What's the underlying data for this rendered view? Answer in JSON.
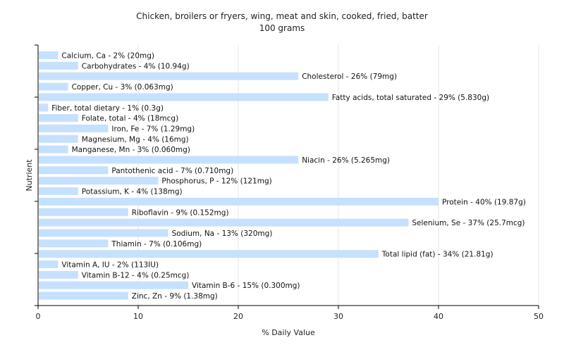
{
  "chart_data": {
    "type": "bar",
    "orientation": "horizontal",
    "title": "Chicken, broilers or fryers, wing, meat and skin, cooked, fried, batter",
    "subtitle": "100 grams",
    "xlabel": "% Daily Value",
    "ylabel": "Nutrient",
    "xlim": [
      0,
      50
    ],
    "xticks": [
      0,
      10,
      20,
      30,
      40,
      50
    ],
    "grid": true,
    "bar_color": "#c6e0ff",
    "categories": [
      "Calcium, Ca",
      "Carbohydrates",
      "Cholesterol",
      "Copper, Cu",
      "Fatty acids, total saturated",
      "Fiber, total dietary",
      "Folate, total",
      "Iron, Fe",
      "Magnesium, Mg",
      "Manganese, Mn",
      "Niacin",
      "Pantothenic acid",
      "Phosphorus, P",
      "Potassium, K",
      "Protein",
      "Riboflavin",
      "Selenium, Se",
      "Sodium, Na",
      "Thiamin",
      "Total lipid (fat)",
      "Vitamin A, IU",
      "Vitamin B-12",
      "Vitamin B-6",
      "Zinc, Zn"
    ],
    "values": [
      2,
      4,
      26,
      3,
      29,
      1,
      4,
      7,
      4,
      3,
      26,
      7,
      12,
      4,
      40,
      9,
      37,
      13,
      7,
      34,
      2,
      4,
      15,
      9
    ],
    "labels": [
      "Calcium, Ca - 2% (20mg)",
      "Carbohydrates - 4% (10.94g)",
      "Cholesterol - 26% (79mg)",
      "Copper, Cu - 3% (0.063mg)",
      "Fatty acids, total saturated - 29% (5.830g)",
      "Fiber, total dietary - 1% (0.3g)",
      "Folate, total - 4% (18mcg)",
      "Iron, Fe - 7% (1.29mg)",
      "Magnesium, Mg - 4% (16mg)",
      "Manganese, Mn - 3% (0.060mg)",
      "Niacin - 26% (5.265mg)",
      "Pantothenic acid - 7% (0.710mg)",
      "Phosphorus, P - 12% (121mg)",
      "Potassium, K - 4% (138mg)",
      "Protein - 40% (19.87g)",
      "Riboflavin - 9% (0.152mg)",
      "Selenium, Se - 37% (25.7mcg)",
      "Sodium, Na - 13% (320mg)",
      "Thiamin - 7% (0.106mg)",
      "Total lipid (fat) - 34% (21.81g)",
      "Vitamin A, IU - 2% (113IU)",
      "Vitamin B-12 - 4% (0.25mcg)",
      "Vitamin B-6 - 15% (0.300mg)",
      "Zinc, Zn - 9% (1.38mg)"
    ]
  }
}
